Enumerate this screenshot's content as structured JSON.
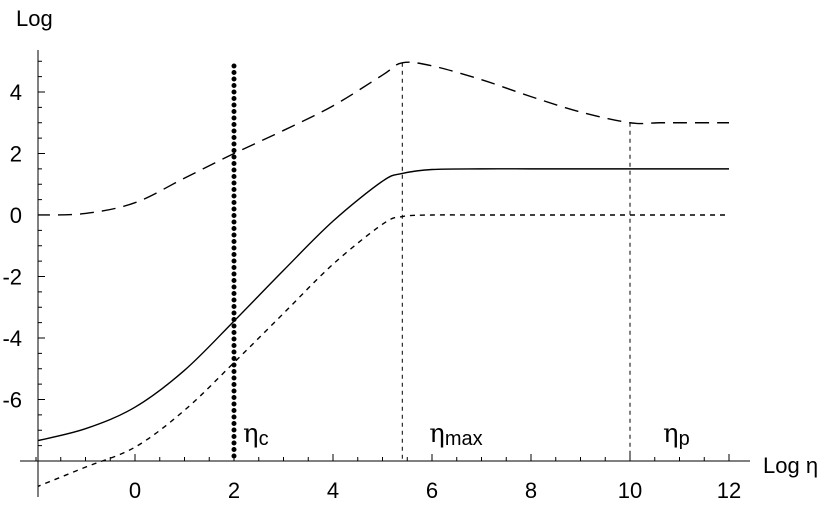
{
  "chart_data": {
    "type": "line",
    "xlabel": "Log η",
    "ylabel": "Log",
    "xlim": [
      -2,
      12
    ],
    "ylim": [
      -8,
      5.2
    ],
    "xticks": [
      0,
      2,
      4,
      6,
      8,
      10,
      12
    ],
    "xtick_labels": [
      "0",
      "2",
      "4",
      "6",
      "8",
      "10",
      "12"
    ],
    "yticks": [
      -6,
      -4,
      -2,
      0,
      2,
      4
    ],
    "ytick_labels": [
      "-6",
      "-4",
      "-2",
      "0",
      "2",
      "4"
    ],
    "grid": false,
    "series": [
      {
        "style": "long-dash",
        "x": [
          -2,
          -1,
          0,
          1,
          2,
          3,
          4,
          5,
          5.4,
          6,
          7,
          8,
          9,
          10,
          10.6,
          11,
          12
        ],
        "y": [
          0,
          0.05,
          0.4,
          1.2,
          2.0,
          2.75,
          3.55,
          4.55,
          4.95,
          4.85,
          4.4,
          3.85,
          3.35,
          3.0,
          3.0,
          3.0,
          3.0
        ]
      },
      {
        "style": "solid",
        "x": [
          -2,
          -1,
          0,
          1,
          2,
          3,
          4,
          5,
          5.4,
          6,
          7,
          8,
          9,
          10,
          11,
          12
        ],
        "y": [
          -7.35,
          -6.95,
          -6.25,
          -5.05,
          -3.45,
          -1.8,
          -0.2,
          1.1,
          1.35,
          1.48,
          1.5,
          1.5,
          1.5,
          1.5,
          1.5,
          1.5
        ]
      },
      {
        "style": "short-dash",
        "x": [
          -2,
          -1,
          0,
          1,
          2,
          3,
          4,
          5,
          5.4,
          6,
          7,
          8,
          9,
          10,
          11,
          12
        ],
        "y": [
          -8.85,
          -8.2,
          -7.55,
          -6.35,
          -4.8,
          -3.2,
          -1.6,
          -0.3,
          -0.05,
          -0.0,
          0,
          0,
          0,
          0,
          0,
          0
        ]
      }
    ],
    "markers": [
      {
        "x": 2,
        "style": "thick-dotted",
        "label": "η",
        "sub": "c"
      },
      {
        "x": 5.4,
        "style": "short-dash",
        "label": "η",
        "sub": "max",
        "top": 4.95
      },
      {
        "x": 10,
        "style": "short-dash",
        "label": "η",
        "sub": "p",
        "top": 3.0
      }
    ]
  }
}
